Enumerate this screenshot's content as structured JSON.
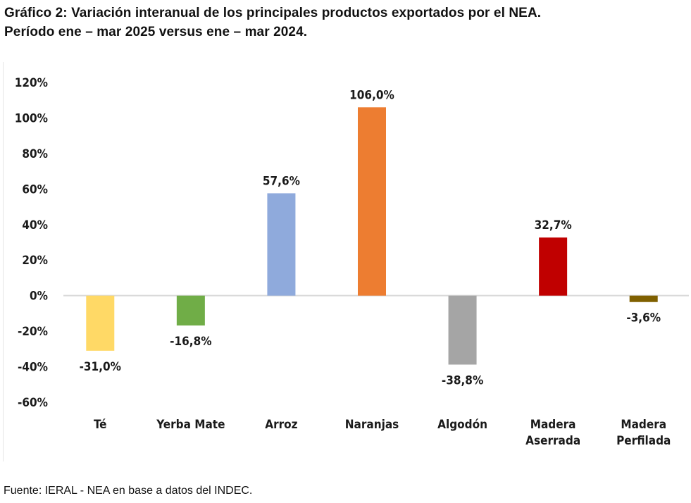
{
  "title": {
    "line1": "Gráfico 2: Variación interanual de los principales productos exportados por el NEA.",
    "line2": "Período ene – mar 2025 versus ene – mar 2024."
  },
  "source": "Fuente: IERAL - NEA en base a datos del INDEC.",
  "chart_data": {
    "type": "bar",
    "title": "Gráfico 2: Variación interanual de los principales productos exportados por el NEA. Período ene – mar 2025 versus ene – mar 2024.",
    "xlabel": "",
    "ylabel": "",
    "ylim": [
      -60,
      120
    ],
    "yticks": [
      120,
      100,
      80,
      60,
      40,
      20,
      0,
      -20,
      -40,
      -60
    ],
    "ytick_labels": [
      "120%",
      "100%",
      "80%",
      "60%",
      "40%",
      "20%",
      "0%",
      "-20%",
      "-40%",
      "-60%"
    ],
    "grid": false,
    "legend": "none",
    "categories": [
      [
        "Té"
      ],
      [
        "Yerba Mate"
      ],
      [
        "Arroz"
      ],
      [
        "Naranjas"
      ],
      [
        "Algodón"
      ],
      [
        "Madera",
        "Aserrada"
      ],
      [
        "Madera",
        "Perfilada"
      ]
    ],
    "values": [
      -31.0,
      -16.8,
      57.6,
      106.0,
      -38.8,
      32.7,
      -3.6
    ],
    "data_labels": [
      "-31,0%",
      "-16,8%",
      "57,6%",
      "106,0%",
      "-38,8%",
      "32,7%",
      "-3,6%"
    ],
    "colors": [
      "#FFD966",
      "#70AD47",
      "#8FAADC",
      "#ED7D31",
      "#A5A5A5",
      "#C00000",
      "#7F6000"
    ]
  }
}
